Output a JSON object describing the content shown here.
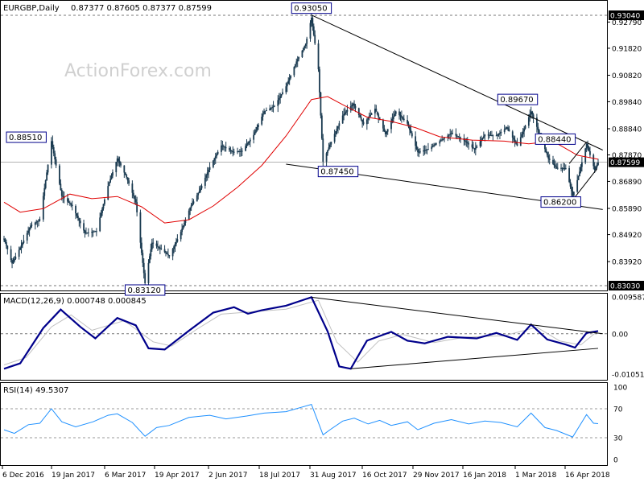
{
  "header": {
    "symbol_tf": "EURGBP,Daily",
    "ohlc": "0.87377 0.87605 0.87377 0.87599",
    "watermark": "ActionForex.com"
  },
  "colors": {
    "background": "#ffffff",
    "grid": "#c8c8c8",
    "candle": "#1a3a50",
    "ma": "#e00000",
    "trend": "#000000",
    "macd": "#00008b",
    "signal": "#c0c0c0",
    "rsi": "#1e90ff",
    "label_border": "#00008b"
  },
  "chart_data": [
    {
      "type": "candlestick",
      "title": "EURGBP,Daily",
      "ylim": [
        0.8303,
        0.9304
      ],
      "y_ticks": [
        "0.92790",
        "0.91820",
        "0.90820",
        "0.89840",
        "0.88840",
        "0.87870",
        "0.86890",
        "0.85890",
        "0.84920",
        "0.83920"
      ],
      "y_tick_values": [
        0.9279,
        0.9182,
        0.9082,
        0.8984,
        0.8884,
        0.8787,
        0.8689,
        0.8589,
        0.8492,
        0.8392
      ],
      "top_box_label": "0.93040",
      "bottom_box_label": "0.83030",
      "current_price_label": "0.87599",
      "current_price": 0.87599,
      "x_tick_labels": [
        "6 Dec 2016",
        "19 Jan 2017",
        "6 Mar 2017",
        "19 Apr 2017",
        "2 Jun 2017",
        "18 Jul 2017",
        "31 Aug 2017",
        "16 Oct 2017",
        "29 Nov 2017",
        "16 Jan 2018",
        "1 Mar 2018",
        "16 Apr 2018"
      ],
      "annotations": [
        {
          "label": "0.93050",
          "price": 0.9305,
          "date": "2017-08-29"
        },
        {
          "label": "0.88510",
          "price": 0.8851,
          "date": "2017-01-17"
        },
        {
          "label": "0.87450",
          "price": 0.8745,
          "date": "2017-09-08"
        },
        {
          "label": "0.89670",
          "price": 0.8967,
          "date": "2018-03-07"
        },
        {
          "label": "0.88440",
          "price": 0.8844,
          "date": "2018-04-17"
        },
        {
          "label": "0.86200",
          "price": 0.862,
          "date": "2018-04-12"
        },
        {
          "label": "0.83120",
          "price": 0.8312,
          "date": "2017-04-07"
        }
      ],
      "trendlines": [
        {
          "from": {
            "date": "2017-08-29",
            "price": 0.9305
          },
          "to": {
            "date": "2018-05-08",
            "price": 0.8805
          }
        },
        {
          "from": {
            "date": "2017-08-07",
            "price": 0.8753
          },
          "to": {
            "date": "2018-05-08",
            "price": 0.8585
          }
        },
        {
          "from": {
            "date": "2018-04-12",
            "price": 0.862
          },
          "to": {
            "date": "2018-05-03",
            "price": 0.8735
          }
        },
        {
          "from": {
            "date": "2018-04-09",
            "price": 0.8755
          },
          "to": {
            "date": "2018-04-24",
            "price": 0.8835
          }
        }
      ],
      "series": [
        {
          "name": "price",
          "points": [
            [
              "2016-12-06",
              0.8477
            ],
            [
              "2016-12-13",
              0.8385
            ],
            [
              "2016-12-21",
              0.8452
            ],
            [
              "2016-12-29",
              0.8525
            ],
            [
              "2017-01-06",
              0.8548
            ],
            [
              "2017-01-16",
              0.8838
            ],
            [
              "2017-01-25",
              0.8635
            ],
            [
              "2017-02-03",
              0.8598
            ],
            [
              "2017-02-14",
              0.8498
            ],
            [
              "2017-02-24",
              0.8505
            ],
            [
              "2017-03-06",
              0.8672
            ],
            [
              "2017-03-14",
              0.8774
            ],
            [
              "2017-03-22",
              0.8704
            ],
            [
              "2017-03-30",
              0.8612
            ],
            [
              "2017-04-07",
              0.8312
            ],
            [
              "2017-04-13",
              0.8462
            ],
            [
              "2017-04-21",
              0.8438
            ],
            [
              "2017-04-28",
              0.8412
            ],
            [
              "2017-05-08",
              0.8502
            ],
            [
              "2017-05-16",
              0.8592
            ],
            [
              "2017-05-24",
              0.8653
            ],
            [
              "2017-06-02",
              0.8742
            ],
            [
              "2017-06-12",
              0.8822
            ],
            [
              "2017-06-22",
              0.8798
            ],
            [
              "2017-06-30",
              0.8802
            ],
            [
              "2017-07-10",
              0.8861
            ],
            [
              "2017-07-19",
              0.8948
            ],
            [
              "2017-07-28",
              0.8968
            ],
            [
              "2017-08-07",
              0.9041
            ],
            [
              "2017-08-16",
              0.9133
            ],
            [
              "2017-08-24",
              0.9198
            ],
            [
              "2017-08-29",
              0.9295
            ],
            [
              "2017-09-04",
              0.9104
            ],
            [
              "2017-09-08",
              0.8762
            ],
            [
              "2017-09-15",
              0.8836
            ],
            [
              "2017-09-25",
              0.8933
            ],
            [
              "2017-10-04",
              0.8977
            ],
            [
              "2017-10-13",
              0.8901
            ],
            [
              "2017-10-23",
              0.8958
            ],
            [
              "2017-11-01",
              0.8864
            ],
            [
              "2017-11-10",
              0.8948
            ],
            [
              "2017-11-20",
              0.8903
            ],
            [
              "2017-11-29",
              0.8797
            ],
            [
              "2017-12-08",
              0.8809
            ],
            [
              "2017-12-18",
              0.8838
            ],
            [
              "2017-12-28",
              0.8868
            ],
            [
              "2018-01-08",
              0.8841
            ],
            [
              "2018-01-17",
              0.8807
            ],
            [
              "2018-01-26",
              0.8862
            ],
            [
              "2018-02-05",
              0.8858
            ],
            [
              "2018-02-14",
              0.8889
            ],
            [
              "2018-02-23",
              0.8821
            ],
            [
              "2018-03-07",
              0.8948
            ],
            [
              "2018-03-14",
              0.8868
            ],
            [
              "2018-03-22",
              0.8773
            ],
            [
              "2018-03-29",
              0.8739
            ],
            [
              "2018-04-06",
              0.8738
            ],
            [
              "2018-04-12",
              0.8636
            ],
            [
              "2018-04-17",
              0.8708
            ],
            [
              "2018-04-24",
              0.8828
            ],
            [
              "2018-05-01",
              0.8732
            ],
            [
              "2018-05-04",
              0.8759
            ]
          ]
        },
        {
          "name": "MA",
          "points": [
            [
              "2016-12-06",
              0.8612
            ],
            [
              "2016-12-20",
              0.8575
            ],
            [
              "2017-01-09",
              0.8588
            ],
            [
              "2017-02-01",
              0.8642
            ],
            [
              "2017-02-20",
              0.8625
            ],
            [
              "2017-03-14",
              0.8633
            ],
            [
              "2017-04-04",
              0.8595
            ],
            [
              "2017-04-24",
              0.8535
            ],
            [
              "2017-05-15",
              0.8547
            ],
            [
              "2017-06-05",
              0.8598
            ],
            [
              "2017-06-26",
              0.8667
            ],
            [
              "2017-07-17",
              0.8748
            ],
            [
              "2017-08-07",
              0.8857
            ],
            [
              "2017-08-29",
              0.8992
            ],
            [
              "2017-09-12",
              0.9003
            ],
            [
              "2017-09-25",
              0.8973
            ],
            [
              "2017-10-16",
              0.8927
            ],
            [
              "2017-11-06",
              0.8911
            ],
            [
              "2017-11-27",
              0.8888
            ],
            [
              "2017-12-18",
              0.8854
            ],
            [
              "2018-01-15",
              0.8842
            ],
            [
              "2018-02-12",
              0.8838
            ],
            [
              "2018-03-05",
              0.8828
            ],
            [
              "2018-03-26",
              0.8838
            ],
            [
              "2018-04-16",
              0.8786
            ],
            [
              "2018-05-04",
              0.8771
            ]
          ]
        }
      ]
    },
    {
      "type": "line",
      "title": "MACD(12,26,9) 0.000748 0.000845",
      "ylim": [
        -0.01051,
        0.00958
      ],
      "y_tick_labels": [
        "0.009587",
        "0.00",
        "-0.010513"
      ],
      "y_tick_values": [
        0.009587,
        0.0,
        -0.010513
      ],
      "series": [
        {
          "name": "macd",
          "points": [
            [
              "2016-12-06",
              -0.0091
            ],
            [
              "2016-12-20",
              -0.0077
            ],
            [
              "2017-01-09",
              0.0015
            ],
            [
              "2017-01-24",
              0.0063
            ],
            [
              "2017-02-10",
              0.0018
            ],
            [
              "2017-02-23",
              -0.0012
            ],
            [
              "2017-03-14",
              0.0041
            ],
            [
              "2017-03-30",
              0.0022
            ],
            [
              "2017-04-10",
              -0.0038
            ],
            [
              "2017-04-24",
              -0.0041
            ],
            [
              "2017-05-15",
              0.0008
            ],
            [
              "2017-06-05",
              0.0055
            ],
            [
              "2017-06-23",
              0.0069
            ],
            [
              "2017-07-05",
              0.0052
            ],
            [
              "2017-07-17",
              0.0061
            ],
            [
              "2017-08-07",
              0.0073
            ],
            [
              "2017-08-29",
              0.0095
            ],
            [
              "2017-09-12",
              0.0006
            ],
            [
              "2017-09-22",
              -0.0085
            ],
            [
              "2017-10-02",
              -0.0091
            ],
            [
              "2017-10-16",
              -0.0018
            ],
            [
              "2017-11-06",
              0.0005
            ],
            [
              "2017-11-20",
              -0.0018
            ],
            [
              "2017-12-05",
              -0.0025
            ],
            [
              "2017-12-25",
              -0.0008
            ],
            [
              "2018-01-19",
              -0.0012
            ],
            [
              "2018-02-05",
              0.0002
            ],
            [
              "2018-02-23",
              -0.0016
            ],
            [
              "2018-03-07",
              0.0024
            ],
            [
              "2018-03-21",
              -0.0015
            ],
            [
              "2018-04-06",
              -0.0028
            ],
            [
              "2018-04-14",
              -0.0036
            ],
            [
              "2018-04-24",
              0.0002
            ],
            [
              "2018-05-04",
              0.0007
            ]
          ]
        },
        {
          "name": "signal",
          "points": [
            [
              "2016-12-06",
              -0.0081
            ],
            [
              "2016-12-25",
              -0.0062
            ],
            [
              "2017-01-16",
              0.0018
            ],
            [
              "2017-02-02",
              0.0049
            ],
            [
              "2017-02-20",
              0.0009
            ],
            [
              "2017-03-20",
              0.0034
            ],
            [
              "2017-04-14",
              -0.0021
            ],
            [
              "2017-04-30",
              -0.0032
            ],
            [
              "2017-05-22",
              0.0012
            ],
            [
              "2017-06-12",
              0.0051
            ],
            [
              "2017-07-12",
              0.0058
            ],
            [
              "2017-08-07",
              0.0064
            ],
            [
              "2017-09-04",
              0.0087
            ],
            [
              "2017-09-20",
              -0.0022
            ],
            [
              "2017-10-08",
              -0.0074
            ],
            [
              "2017-10-26",
              -0.0019
            ],
            [
              "2017-11-16",
              -0.0002
            ],
            [
              "2017-12-13",
              -0.0023
            ],
            [
              "2018-01-08",
              -0.0009
            ],
            [
              "2018-02-12",
              -0.0005
            ],
            [
              "2018-03-12",
              0.0017
            ],
            [
              "2018-04-01",
              -0.0019
            ],
            [
              "2018-04-19",
              -0.0029
            ],
            [
              "2018-05-04",
              0.0008
            ]
          ]
        }
      ]
    },
    {
      "type": "line",
      "title": "RSI(14) 49.5307",
      "ylim": [
        0,
        100
      ],
      "y_tick_labels": [
        "100",
        "70",
        "30",
        "0"
      ],
      "y_tick_values": [
        100,
        70,
        30,
        0
      ],
      "series": [
        {
          "name": "rsi",
          "points": [
            [
              "2016-12-06",
              41
            ],
            [
              "2016-12-15",
              36
            ],
            [
              "2016-12-27",
              48
            ],
            [
              "2017-01-06",
              50
            ],
            [
              "2017-01-16",
              70
            ],
            [
              "2017-01-25",
              52
            ],
            [
              "2017-02-06",
              45
            ],
            [
              "2017-02-21",
              52
            ],
            [
              "2017-03-06",
              61
            ],
            [
              "2017-03-14",
              63
            ],
            [
              "2017-03-27",
              51
            ],
            [
              "2017-04-07",
              32
            ],
            [
              "2017-04-17",
              44
            ],
            [
              "2017-04-28",
              47
            ],
            [
              "2017-05-15",
              58
            ],
            [
              "2017-06-02",
              61
            ],
            [
              "2017-06-16",
              56
            ],
            [
              "2017-07-04",
              60
            ],
            [
              "2017-07-19",
              64
            ],
            [
              "2017-08-07",
              66
            ],
            [
              "2017-08-29",
              76
            ],
            [
              "2017-09-08",
              34
            ],
            [
              "2017-09-14",
              41
            ],
            [
              "2017-09-25",
              53
            ],
            [
              "2017-10-05",
              57
            ],
            [
              "2017-10-17",
              49
            ],
            [
              "2017-10-27",
              54
            ],
            [
              "2017-11-06",
              47
            ],
            [
              "2017-11-20",
              52
            ],
            [
              "2017-11-29",
              41
            ],
            [
              "2017-12-13",
              50
            ],
            [
              "2017-12-28",
              55
            ],
            [
              "2018-01-12",
              49
            ],
            [
              "2018-01-26",
              53
            ],
            [
              "2018-02-09",
              51
            ],
            [
              "2018-02-23",
              45
            ],
            [
              "2018-03-07",
              64
            ],
            [
              "2018-03-19",
              44
            ],
            [
              "2018-03-29",
              40
            ],
            [
              "2018-04-12",
              31
            ],
            [
              "2018-04-24",
              62
            ],
            [
              "2018-04-30",
              50
            ],
            [
              "2018-05-04",
              49.5
            ]
          ]
        }
      ]
    }
  ]
}
